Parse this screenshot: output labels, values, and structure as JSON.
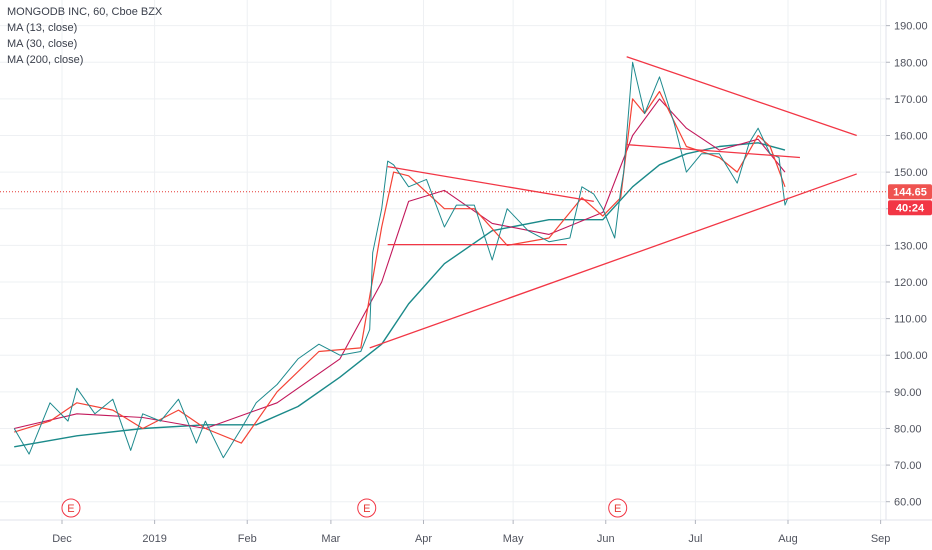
{
  "legend": {
    "title": "MONGODB INC, 60, Cboe BZX",
    "ma1": "MA (13, close)",
    "ma2": "MA (30, close)",
    "ma3": "MA (200, close)"
  },
  "price_label": "144.65",
  "countdown_label": "40:24",
  "earnings_marker": "E",
  "colors": {
    "price": "#1e8a8e",
    "ma13": "#f44336",
    "ma30": "#c2185b",
    "ma200": "#1b8a8a",
    "trendline": "#f23645",
    "price_line": "#e53935",
    "price_box": "#ef5350",
    "countdown_box": "#f23645",
    "grid": "#eef0f3",
    "axis_text": "#50535e"
  },
  "chart_data": {
    "type": "line",
    "title": "MONGODB INC, 60, Cboe BZX",
    "ylim": [
      55,
      197
    ],
    "y_ticks": [
      60,
      70,
      80,
      90,
      100,
      110,
      120,
      130,
      140,
      150,
      160,
      170,
      180,
      190
    ],
    "x_ticks": [
      "Dec",
      "2019",
      "Feb",
      "Mar",
      "Apr",
      "May",
      "Jun",
      "Jul",
      "Aug",
      "Sep"
    ],
    "x_tick_dates": [
      "2018-12-01",
      "2019-01-01",
      "2019-02-01",
      "2019-03-01",
      "2019-04-01",
      "2019-05-01",
      "2019-06-01",
      "2019-07-01",
      "2019-08-01",
      "2019-09-01"
    ],
    "last_price": 144.65,
    "grid": true,
    "series": [
      {
        "name": "MONGODB INC, 60, Cboe BZX",
        "x": [
          "2018-11-15",
          "2018-11-20",
          "2018-11-27",
          "2018-12-03",
          "2018-12-06",
          "2018-12-12",
          "2018-12-18",
          "2018-12-24",
          "2018-12-28",
          "2019-01-03",
          "2019-01-09",
          "2019-01-15",
          "2019-01-18",
          "2019-01-24",
          "2019-01-30",
          "2019-02-04",
          "2019-02-11",
          "2019-02-18",
          "2019-02-25",
          "2019-03-04",
          "2019-03-11",
          "2019-03-14",
          "2019-03-15",
          "2019-03-18",
          "2019-03-20",
          "2019-03-22",
          "2019-03-27",
          "2019-04-02",
          "2019-04-08",
          "2019-04-12",
          "2019-04-18",
          "2019-04-24",
          "2019-04-29",
          "2019-05-06",
          "2019-05-13",
          "2019-05-20",
          "2019-05-24",
          "2019-05-28",
          "2019-05-31",
          "2019-06-04",
          "2019-06-06",
          "2019-06-07",
          "2019-06-10",
          "2019-06-14",
          "2019-06-19",
          "2019-06-24",
          "2019-06-28",
          "2019-07-03",
          "2019-07-09",
          "2019-07-15",
          "2019-07-19",
          "2019-07-22",
          "2019-07-26",
          "2019-07-29",
          "2019-07-31",
          "2019-08-01"
        ],
        "values": [
          80,
          73,
          87,
          82,
          91,
          84,
          88,
          74,
          84,
          82,
          88,
          76,
          82,
          72,
          80,
          87,
          92,
          99,
          103,
          100,
          101,
          107,
          128,
          140,
          153,
          152,
          146,
          148,
          135,
          141,
          141,
          126,
          140,
          134,
          131,
          132,
          146,
          144,
          140,
          132,
          145,
          150,
          180,
          166,
          176,
          163,
          150,
          155,
          155,
          147,
          158,
          162,
          155,
          154,
          141,
          143
        ]
      },
      {
        "name": "MA (13, close)",
        "x": [
          "2018-11-15",
          "2018-11-27",
          "2018-12-06",
          "2018-12-18",
          "2018-12-28",
          "2019-01-09",
          "2019-01-18",
          "2019-01-30",
          "2019-02-11",
          "2019-02-25",
          "2019-03-11",
          "2019-03-18",
          "2019-03-22",
          "2019-03-27",
          "2019-04-08",
          "2019-04-18",
          "2019-04-29",
          "2019-05-13",
          "2019-05-24",
          "2019-05-31",
          "2019-06-06",
          "2019-06-10",
          "2019-06-14",
          "2019-06-19",
          "2019-06-28",
          "2019-07-09",
          "2019-07-15",
          "2019-07-22",
          "2019-07-26",
          "2019-07-31"
        ],
        "values": [
          79,
          82,
          87,
          85,
          80,
          85,
          80,
          76,
          90,
          101,
          102,
          135,
          150,
          149,
          140,
          140,
          130,
          132,
          143,
          138,
          143,
          170,
          166,
          172,
          157,
          154,
          150,
          160,
          157,
          146
        ]
      },
      {
        "name": "MA (30, close)",
        "x": [
          "2018-11-15",
          "2018-12-06",
          "2018-12-28",
          "2019-01-18",
          "2019-02-11",
          "2019-03-04",
          "2019-03-18",
          "2019-03-27",
          "2019-04-08",
          "2019-04-24",
          "2019-05-13",
          "2019-05-31",
          "2019-06-10",
          "2019-06-19",
          "2019-06-28",
          "2019-07-09",
          "2019-07-22",
          "2019-07-31"
        ],
        "values": [
          80,
          84,
          83,
          80,
          87,
          99,
          120,
          142,
          145,
          136,
          133,
          139,
          160,
          170,
          162,
          156,
          159,
          150
        ]
      },
      {
        "name": "MA (200, close)",
        "x": [
          "2018-11-15",
          "2018-12-06",
          "2018-12-28",
          "2019-01-18",
          "2019-02-04",
          "2019-02-18",
          "2019-03-04",
          "2019-03-18",
          "2019-03-27",
          "2019-04-08",
          "2019-04-24",
          "2019-05-13",
          "2019-05-31",
          "2019-06-10",
          "2019-06-19",
          "2019-06-28",
          "2019-07-09",
          "2019-07-22",
          "2019-07-31"
        ],
        "values": [
          75,
          78,
          80,
          81,
          81,
          86,
          94,
          103,
          114,
          125,
          134,
          137,
          137,
          146,
          152,
          155,
          157,
          158,
          156
        ]
      }
    ],
    "trendlines": [
      {
        "x": [
          "2019-03-14",
          "2019-08-24"
        ],
        "y": [
          102,
          149.5
        ]
      },
      {
        "x": [
          "2019-06-08",
          "2019-08-24"
        ],
        "y": [
          181.5,
          160
        ]
      },
      {
        "x": [
          "2019-06-08",
          "2019-08-05"
        ],
        "y": [
          157.5,
          154
        ]
      },
      {
        "x": [
          "2019-03-20",
          "2019-05-28"
        ],
        "y": [
          151.5,
          142
        ]
      },
      {
        "x": [
          "2019-03-20",
          "2019-05-19"
        ],
        "y": [
          130.2,
          130.2
        ]
      }
    ],
    "earnings_dates": [
      "2018-12-04",
      "2019-03-13",
      "2019-06-05"
    ]
  }
}
